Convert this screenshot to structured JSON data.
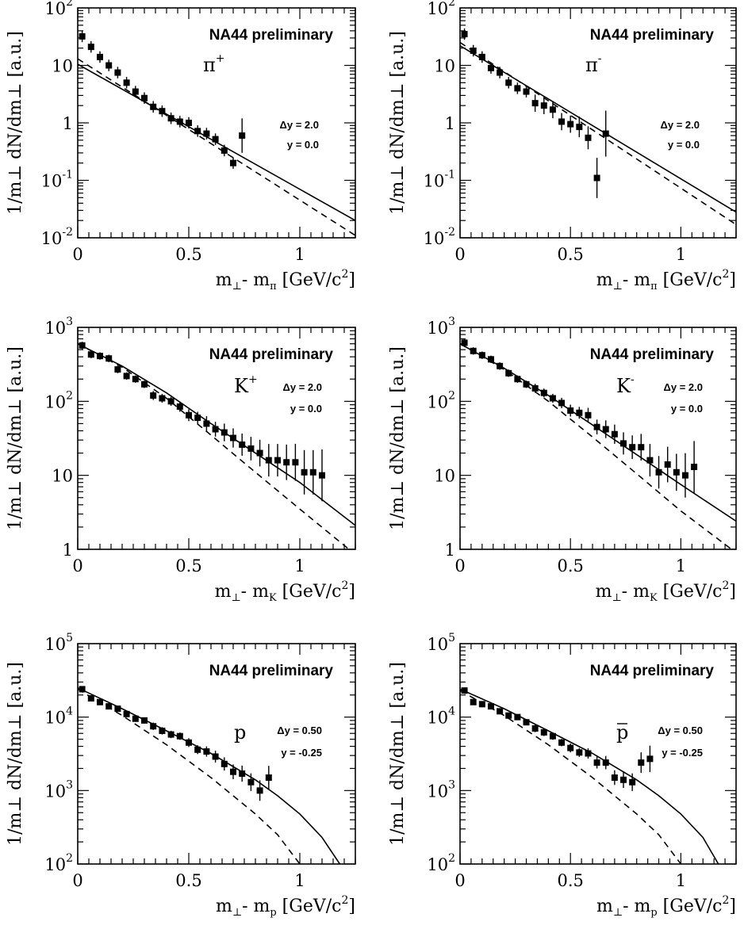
{
  "chart_data": [
    {
      "type": "scatter",
      "panel": "pi-plus",
      "annotation": "NA44 preliminary",
      "particle": "π",
      "particle_sup": "+",
      "particle_bar": false,
      "dy_text": "Δy = 2.0",
      "y_text": "y = 0.0",
      "ylabel": "1/m⊥ dN/dm⊥ [a.u.]",
      "xlabel_main": "m",
      "xlabel_sub": "π",
      "xlim": [
        0,
        1.25
      ],
      "ylim": [
        0.01,
        100
      ],
      "yscale": "log",
      "xticks": [
        {
          "v": 0,
          "label": "0"
        },
        {
          "v": 0.5,
          "label": "0.5"
        },
        {
          "v": 1,
          "label": "1"
        }
      ],
      "yticks": [
        {
          "v": 0.01,
          "base": "10",
          "exp": "-2"
        },
        {
          "v": 0.1,
          "base": "10",
          "exp": "-1"
        },
        {
          "v": 1,
          "base": "1",
          "exp": ""
        },
        {
          "v": 10,
          "base": "10",
          "exp": ""
        },
        {
          "v": 100,
          "base": "10",
          "exp": "2"
        }
      ],
      "series": [
        {
          "kind": "data",
          "x": [
            0.02,
            0.06,
            0.1,
            0.14,
            0.18,
            0.22,
            0.26,
            0.3,
            0.34,
            0.38,
            0.42,
            0.46,
            0.5,
            0.54,
            0.58,
            0.62,
            0.66,
            0.7,
            0.74
          ],
          "y": [
            32,
            21,
            14,
            10,
            7.5,
            5,
            3.5,
            2.7,
            1.9,
            1.6,
            1.2,
            1.05,
            1.0,
            0.72,
            0.65,
            0.52,
            0.33,
            0.2,
            0.6
          ],
          "err": [
            0.1,
            0.1,
            0.1,
            0.1,
            0.1,
            0.1,
            0.1,
            0.1,
            0.1,
            0.1,
            0.1,
            0.1,
            0.1,
            0.1,
            0.1,
            0.1,
            0.1,
            0.1,
            0.3
          ]
        },
        {
          "kind": "solid",
          "x": [
            0,
            1.25
          ],
          "y": [
            10.5,
            0.02
          ]
        },
        {
          "kind": "dashed",
          "x": [
            0,
            1.25
          ],
          "y": [
            13,
            0.011
          ]
        }
      ]
    },
    {
      "type": "scatter",
      "panel": "pi-minus",
      "annotation": "NA44 preliminary",
      "particle": "π",
      "particle_sup": "-",
      "particle_bar": false,
      "dy_text": "Δy = 2.0",
      "y_text": "y = 0.0",
      "ylabel": "1/m⊥ dN/dm⊥ [a.u.]",
      "xlabel_main": "m",
      "xlabel_sub": "π",
      "xlim": [
        0,
        1.25
      ],
      "ylim": [
        0.01,
        100
      ],
      "yscale": "log",
      "xticks": [
        {
          "v": 0,
          "label": "0"
        },
        {
          "v": 0.5,
          "label": "0.5"
        },
        {
          "v": 1,
          "label": "1"
        }
      ],
      "yticks": [
        {
          "v": 0.01,
          "base": "10",
          "exp": "-2"
        },
        {
          "v": 0.1,
          "base": "10",
          "exp": "-1"
        },
        {
          "v": 1,
          "base": "1",
          "exp": ""
        },
        {
          "v": 10,
          "base": "10",
          "exp": ""
        },
        {
          "v": 100,
          "base": "10",
          "exp": "2"
        }
      ],
      "series": [
        {
          "kind": "data",
          "x": [
            0.02,
            0.06,
            0.1,
            0.14,
            0.18,
            0.22,
            0.26,
            0.3,
            0.34,
            0.38,
            0.42,
            0.46,
            0.5,
            0.54,
            0.58,
            0.62,
            0.66
          ],
          "y": [
            35,
            18,
            14,
            9,
            7.5,
            5,
            4,
            3.5,
            2.2,
            2.0,
            1.7,
            1.05,
            0.95,
            0.85,
            0.55,
            0.11,
            0.65
          ],
          "err": [
            0.1,
            0.1,
            0.1,
            0.1,
            0.1,
            0.1,
            0.1,
            0.1,
            0.15,
            0.15,
            0.15,
            0.15,
            0.15,
            0.18,
            0.2,
            0.35,
            0.4
          ]
        },
        {
          "kind": "solid",
          "x": [
            0,
            1.25
          ],
          "y": [
            22,
            0.028
          ]
        },
        {
          "kind": "dashed",
          "x": [
            0,
            1.25
          ],
          "y": [
            25,
            0.017
          ]
        }
      ]
    },
    {
      "type": "scatter",
      "panel": "k-plus",
      "annotation": "NA44 preliminary",
      "particle": "K",
      "particle_sup": "+",
      "particle_bar": false,
      "dy_text": "Δy = 2.0",
      "y_text": "y = 0.0",
      "ylabel": "1/m⊥ dN/dm⊥ [a.u.]",
      "xlabel_main": "m",
      "xlabel_sub": "K",
      "xlim": [
        0,
        1.25
      ],
      "ylim": [
        1,
        1000
      ],
      "yscale": "log",
      "xticks": [
        {
          "v": 0,
          "label": "0"
        },
        {
          "v": 0.5,
          "label": "0.5"
        },
        {
          "v": 1,
          "label": "1"
        }
      ],
      "yticks": [
        {
          "v": 1,
          "base": "1",
          "exp": ""
        },
        {
          "v": 10,
          "base": "10",
          "exp": ""
        },
        {
          "v": 100,
          "base": "10",
          "exp": "2"
        },
        {
          "v": 1000,
          "base": "10",
          "exp": "3"
        }
      ],
      "series": [
        {
          "kind": "data",
          "x": [
            0.02,
            0.06,
            0.1,
            0.14,
            0.18,
            0.22,
            0.26,
            0.3,
            0.34,
            0.38,
            0.42,
            0.46,
            0.5,
            0.54,
            0.58,
            0.62,
            0.66,
            0.7,
            0.74,
            0.78,
            0.82,
            0.86,
            0.9,
            0.94,
            0.98,
            1.02,
            1.06,
            1.1
          ],
          "y": [
            570,
            430,
            410,
            380,
            270,
            220,
            200,
            170,
            120,
            110,
            100,
            85,
            65,
            60,
            50,
            42,
            38,
            32,
            26,
            23,
            20,
            16,
            16,
            15,
            15,
            11,
            11,
            10
          ],
          "err": [
            0.05,
            0.05,
            0.05,
            0.05,
            0.05,
            0.05,
            0.05,
            0.05,
            0.06,
            0.06,
            0.06,
            0.07,
            0.08,
            0.08,
            0.1,
            0.1,
            0.12,
            0.13,
            0.15,
            0.16,
            0.18,
            0.22,
            0.22,
            0.24,
            0.25,
            0.3,
            0.3,
            0.35
          ]
        },
        {
          "kind": "solid",
          "x": [
            0,
            0.2,
            0.4,
            0.6,
            0.8,
            1.0,
            1.25
          ],
          "y": [
            600,
            300,
            130,
            50,
            20,
            8,
            2.1
          ]
        },
        {
          "kind": "dashed",
          "x": [
            0,
            0.2,
            0.4,
            0.6,
            0.8,
            1.0,
            1.25
          ],
          "y": [
            600,
            290,
            110,
            35,
            11,
            3.5,
            0.85
          ]
        }
      ]
    },
    {
      "type": "scatter",
      "panel": "k-minus",
      "annotation": "NA44 preliminary",
      "particle": "K",
      "particle_sup": "-",
      "particle_bar": false,
      "dy_text": "Δy = 2.0",
      "y_text": "y = 0.0",
      "ylabel": "1/m⊥ dN/dm⊥ [a.u.]",
      "xlabel_main": "m",
      "xlabel_sub": "K",
      "xlim": [
        0,
        1.25
      ],
      "ylim": [
        1,
        1000
      ],
      "yscale": "log",
      "xticks": [
        {
          "v": 0,
          "label": "0"
        },
        {
          "v": 0.5,
          "label": "0.5"
        },
        {
          "v": 1,
          "label": "1"
        }
      ],
      "yticks": [
        {
          "v": 1,
          "base": "1",
          "exp": ""
        },
        {
          "v": 10,
          "base": "10",
          "exp": ""
        },
        {
          "v": 100,
          "base": "10",
          "exp": "2"
        },
        {
          "v": 1000,
          "base": "10",
          "exp": "3"
        }
      ],
      "series": [
        {
          "kind": "data",
          "x": [
            0.02,
            0.06,
            0.1,
            0.14,
            0.18,
            0.22,
            0.26,
            0.3,
            0.34,
            0.38,
            0.42,
            0.46,
            0.5,
            0.54,
            0.58,
            0.62,
            0.66,
            0.7,
            0.74,
            0.78,
            0.82,
            0.86,
            0.9,
            0.94,
            0.98,
            1.02,
            1.06
          ],
          "y": [
            620,
            480,
            420,
            370,
            300,
            240,
            200,
            170,
            150,
            130,
            110,
            95,
            75,
            70,
            65,
            45,
            42,
            36,
            27,
            24,
            24,
            16,
            11,
            14,
            11,
            10,
            13
          ],
          "err": [
            0.05,
            0.05,
            0.05,
            0.05,
            0.05,
            0.05,
            0.05,
            0.05,
            0.06,
            0.06,
            0.06,
            0.07,
            0.08,
            0.08,
            0.1,
            0.1,
            0.12,
            0.13,
            0.15,
            0.16,
            0.18,
            0.22,
            0.22,
            0.24,
            0.25,
            0.3,
            0.35
          ]
        },
        {
          "kind": "solid",
          "x": [
            0,
            0.2,
            0.4,
            0.6,
            0.8,
            1.0,
            1.25
          ],
          "y": [
            600,
            280,
            120,
            48,
            19,
            7.5,
            2.4
          ]
        },
        {
          "kind": "dashed",
          "x": [
            0,
            0.2,
            0.4,
            0.6,
            0.8,
            1.0,
            1.25
          ],
          "y": [
            600,
            270,
            100,
            33,
            10.5,
            3.3,
            0.9
          ]
        }
      ]
    },
    {
      "type": "scatter",
      "panel": "proton",
      "annotation": "NA44 preliminary",
      "particle": "p",
      "particle_sup": "",
      "particle_bar": false,
      "dy_text": "Δy = 0.50",
      "y_text": "y = -0.25",
      "ylabel": "1/m⊥ dN/dm⊥ [a.u.]",
      "xlabel_main": "m",
      "xlabel_sub": "p",
      "xlim": [
        0,
        1.25
      ],
      "ylim": [
        100,
        100000
      ],
      "yscale": "log",
      "xticks": [
        {
          "v": 0,
          "label": "0"
        },
        {
          "v": 0.5,
          "label": "0.5"
        },
        {
          "v": 1,
          "label": "1"
        }
      ],
      "yticks": [
        {
          "v": 100,
          "base": "10",
          "exp": "2"
        },
        {
          "v": 1000,
          "base": "10",
          "exp": "3"
        },
        {
          "v": 10000,
          "base": "10",
          "exp": "4"
        },
        {
          "v": 100000,
          "base": "10",
          "exp": "5"
        }
      ],
      "series": [
        {
          "kind": "data",
          "x": [
            0.02,
            0.06,
            0.1,
            0.14,
            0.18,
            0.22,
            0.26,
            0.3,
            0.34,
            0.38,
            0.42,
            0.46,
            0.5,
            0.54,
            0.58,
            0.62,
            0.66,
            0.7,
            0.74,
            0.78,
            0.82,
            0.86
          ],
          "y": [
            24000,
            18000,
            16000,
            14000,
            13000,
            11000,
            9500,
            9000,
            7500,
            6500,
            5800,
            5500,
            4500,
            3600,
            3400,
            2900,
            2300,
            1800,
            1700,
            1300,
            1000,
            1500
          ],
          "err": [
            0.04,
            0.04,
            0.04,
            0.04,
            0.04,
            0.04,
            0.04,
            0.04,
            0.05,
            0.05,
            0.05,
            0.05,
            0.06,
            0.06,
            0.07,
            0.08,
            0.09,
            0.1,
            0.11,
            0.12,
            0.14,
            0.16
          ]
        },
        {
          "kind": "solid",
          "x": [
            0,
            0.2,
            0.4,
            0.6,
            0.8,
            0.9,
            1.0,
            1.1,
            1.18
          ],
          "y": [
            25000,
            13000,
            6500,
            3200,
            1400,
            850,
            480,
            230,
            100
          ]
        },
        {
          "kind": "dashed",
          "x": [
            0,
            0.2,
            0.4,
            0.6,
            0.8,
            0.9,
            1.0
          ],
          "y": [
            24000,
            10500,
            4200,
            1500,
            480,
            250,
            100
          ]
        }
      ]
    },
    {
      "type": "scatter",
      "panel": "antiproton",
      "annotation": "NA44 preliminary",
      "particle": "p",
      "particle_sup": "",
      "particle_bar": true,
      "dy_text": "Δy = 0.50",
      "y_text": "y = -0.25",
      "ylabel": "1/m⊥ dN/dm⊥ [a.u.]",
      "xlabel_main": "m",
      "xlabel_sub": "p",
      "xlim": [
        0,
        1.25
      ],
      "ylim": [
        100,
        100000
      ],
      "yscale": "log",
      "xticks": [
        {
          "v": 0,
          "label": "0"
        },
        {
          "v": 0.5,
          "label": "0.5"
        },
        {
          "v": 1,
          "label": "1"
        }
      ],
      "yticks": [
        {
          "v": 100,
          "base": "10",
          "exp": "2"
        },
        {
          "v": 1000,
          "base": "10",
          "exp": "3"
        },
        {
          "v": 10000,
          "base": "10",
          "exp": "4"
        },
        {
          "v": 100000,
          "base": "10",
          "exp": "5"
        }
      ],
      "series": [
        {
          "kind": "data",
          "x": [
            0.02,
            0.06,
            0.1,
            0.14,
            0.18,
            0.22,
            0.26,
            0.3,
            0.34,
            0.38,
            0.42,
            0.46,
            0.5,
            0.54,
            0.58,
            0.62,
            0.66,
            0.7,
            0.74,
            0.78,
            0.82,
            0.86
          ],
          "y": [
            23000,
            16000,
            15000,
            14000,
            12000,
            10500,
            10000,
            8500,
            7000,
            6200,
            5500,
            4500,
            3800,
            3300,
            3200,
            2400,
            2400,
            1500,
            1400,
            1300,
            2400,
            2700
          ],
          "err": [
            0.04,
            0.04,
            0.04,
            0.04,
            0.04,
            0.04,
            0.04,
            0.04,
            0.05,
            0.05,
            0.05,
            0.05,
            0.06,
            0.06,
            0.07,
            0.08,
            0.09,
            0.1,
            0.11,
            0.12,
            0.14,
            0.18
          ]
        },
        {
          "kind": "solid",
          "x": [
            0,
            0.2,
            0.4,
            0.6,
            0.8,
            0.9,
            1.0,
            1.1,
            1.17
          ],
          "y": [
            24000,
            13000,
            6500,
            3200,
            1400,
            850,
            480,
            230,
            100
          ]
        },
        {
          "kind": "dashed",
          "x": [
            0,
            0.2,
            0.4,
            0.6,
            0.8,
            0.9,
            1.0
          ],
          "y": [
            23000,
            10500,
            4200,
            1500,
            480,
            250,
            100
          ]
        }
      ]
    }
  ]
}
